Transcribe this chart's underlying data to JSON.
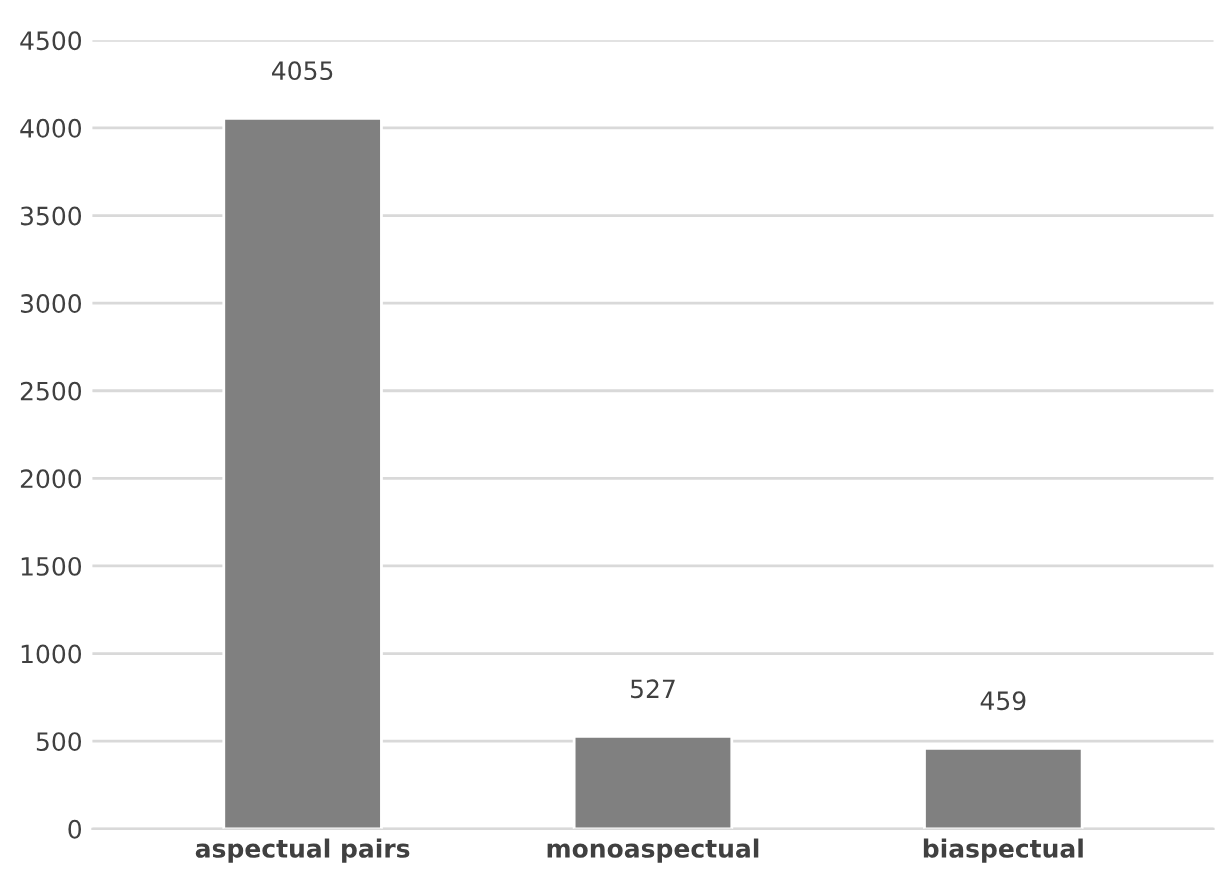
{
  "chart_data": {
    "type": "bar",
    "categories": [
      "aspectual pairs",
      "monoaspectual",
      "biaspectual"
    ],
    "values": [
      4055,
      527,
      459
    ],
    "color": "#808080",
    "ylim": [
      0,
      4500
    ],
    "yticks": [
      0,
      500,
      1000,
      1500,
      2000,
      2500,
      3000,
      3500,
      4000,
      4500
    ],
    "grid": "y",
    "data_labels": true
  }
}
